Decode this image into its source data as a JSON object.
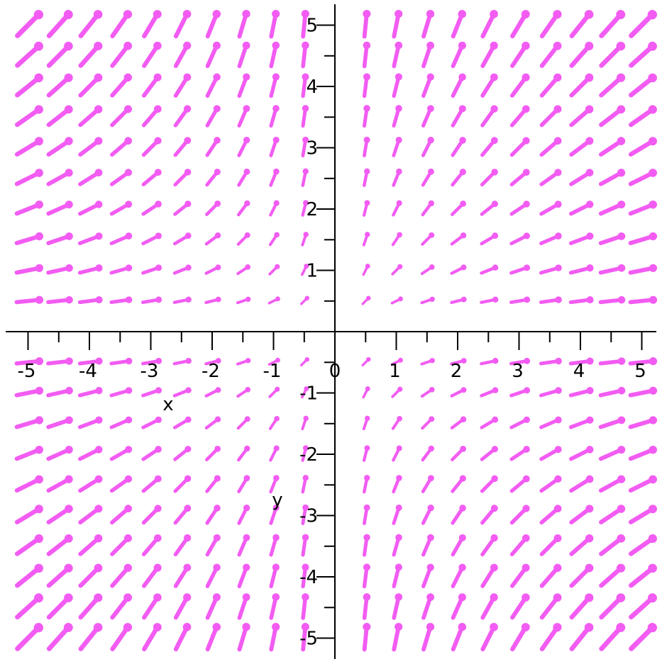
{
  "chart_data": {
    "type": "vector_field",
    "title": "",
    "xlabel": "x",
    "ylabel": "y",
    "xlim": [
      -5.2,
      5.2
    ],
    "ylim": [
      -5.2,
      5.2
    ],
    "xticks": [
      -5,
      -4,
      -3,
      -2,
      -1,
      0,
      1,
      2,
      3,
      4,
      5
    ],
    "xtick_labels": [
      "-5",
      "-4",
      "-3",
      "-2",
      "-1",
      "0",
      "1",
      "2",
      "3",
      "4",
      "5"
    ],
    "yticks": [
      -5,
      -4,
      -3,
      -2,
      -1,
      0,
      1,
      2,
      3,
      4,
      5
    ],
    "ytick_labels": [
      "-5",
      "-4",
      "-3",
      "-2",
      "-1",
      "0",
      "1",
      "2",
      "3",
      "4",
      "5"
    ],
    "x_samples": [
      -5.0,
      -4.5,
      -4.0,
      -3.5,
      -3.0,
      -2.5,
      -2.0,
      -1.5,
      -1.0,
      -0.5,
      0.5,
      1.0,
      1.5,
      2.0,
      2.5,
      3.0,
      3.5,
      4.0,
      4.5,
      5.0
    ],
    "y_samples": [
      5.0,
      4.5,
      4.0,
      3.5,
      3.0,
      2.5,
      2.0,
      1.5,
      1.0,
      0.5,
      -0.5,
      -1.0,
      -1.5,
      -2.0,
      -2.5,
      -3.0,
      -3.5,
      -4.0,
      -4.5,
      -5.0
    ],
    "field": {
      "dx": "|x|",
      "dy": "|y|"
    },
    "grid": false,
    "color": "#f25cf2"
  }
}
